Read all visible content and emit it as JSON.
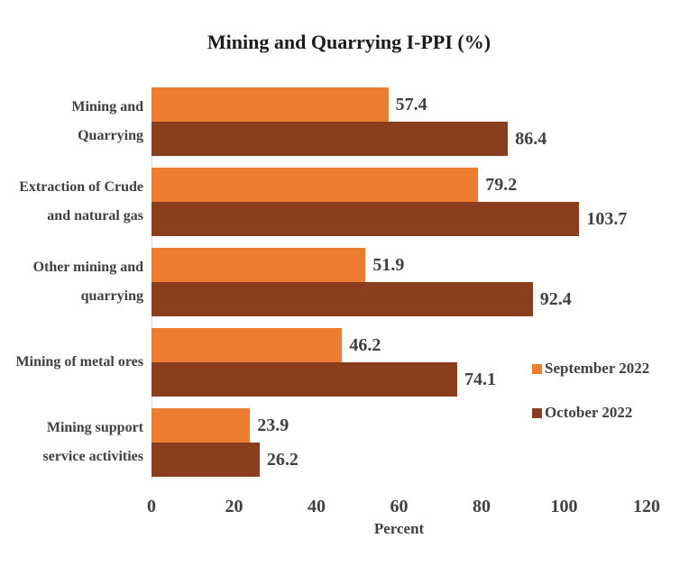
{
  "title": "Mining and Quarrying I-PPI (%)",
  "colors": {
    "september": "#ED7D31",
    "october": "#8B3E1D",
    "text": "#404040",
    "axis_line": "#d9d9d9"
  },
  "chart_data": {
    "type": "bar",
    "orientation": "horizontal",
    "title": "Mining and Quarrying I-PPI (%)",
    "categories": [
      [
        "Mining and",
        "Quarrying"
      ],
      [
        "Extraction of Crude",
        "and natural gas"
      ],
      [
        "Other mining and",
        "quarrying"
      ],
      [
        "Mining of metal ores"
      ],
      [
        "Mining support",
        "service activities"
      ]
    ],
    "series": [
      {
        "name": "September 2022",
        "color": "#ED7D31",
        "values": [
          57.4,
          79.2,
          51.9,
          46.2,
          23.9
        ]
      },
      {
        "name": "October 2022",
        "color": "#8B3E1D",
        "values": [
          86.4,
          103.7,
          92.4,
          74.1,
          26.2
        ]
      }
    ],
    "data_labels": true,
    "xlabel": "Percent",
    "xlim": [
      0,
      120
    ],
    "xticks": [
      0,
      20,
      40,
      60,
      80,
      100,
      120
    ],
    "legend_position": "right-inside",
    "grid": false
  }
}
